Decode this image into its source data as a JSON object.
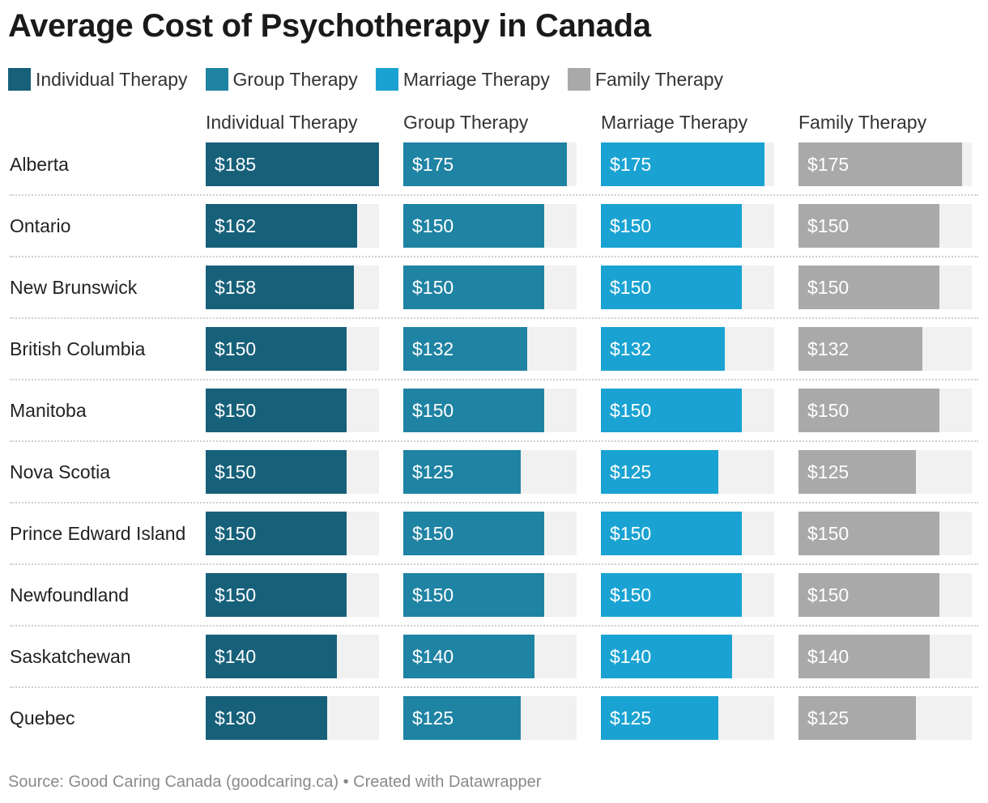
{
  "title": "Average Cost of Psychotherapy in Canada",
  "source": "Source: Good Caring Canada (goodcaring.ca) • Created with Datawrapper",
  "colors": {
    "individual": "#17607a",
    "group": "#1f83a3",
    "marriage": "#1aa3d2",
    "family": "#a9a9a9",
    "track": "#f1f1f1"
  },
  "chart_data": {
    "type": "bar",
    "orientation": "horizontal",
    "layout": "small-multiples",
    "title": "Average Cost of Psychotherapy in Canada",
    "xlabel": "",
    "ylabel": "",
    "xlim": [
      0,
      185
    ],
    "value_prefix": "$",
    "legend": [
      "Individual Therapy",
      "Group Therapy",
      "Marriage Therapy",
      "Family Therapy"
    ],
    "categories": [
      "Alberta",
      "Ontario",
      "New Brunswick",
      "British Columbia",
      "Manitoba",
      "Nova Scotia",
      "Prince Edward Island",
      "Newfoundland",
      "Saskatchewan",
      "Quebec"
    ],
    "series": [
      {
        "name": "Individual Therapy",
        "key": "individual",
        "values": [
          185,
          162,
          158,
          150,
          150,
          150,
          150,
          150,
          140,
          130
        ]
      },
      {
        "name": "Group Therapy",
        "key": "group",
        "values": [
          175,
          150,
          150,
          132,
          150,
          125,
          150,
          150,
          140,
          125
        ]
      },
      {
        "name": "Marriage Therapy",
        "key": "marriage",
        "values": [
          175,
          150,
          150,
          132,
          150,
          125,
          150,
          150,
          140,
          125
        ]
      },
      {
        "name": "Family Therapy",
        "key": "family",
        "values": [
          175,
          150,
          150,
          132,
          150,
          125,
          150,
          150,
          140,
          125
        ]
      }
    ]
  }
}
